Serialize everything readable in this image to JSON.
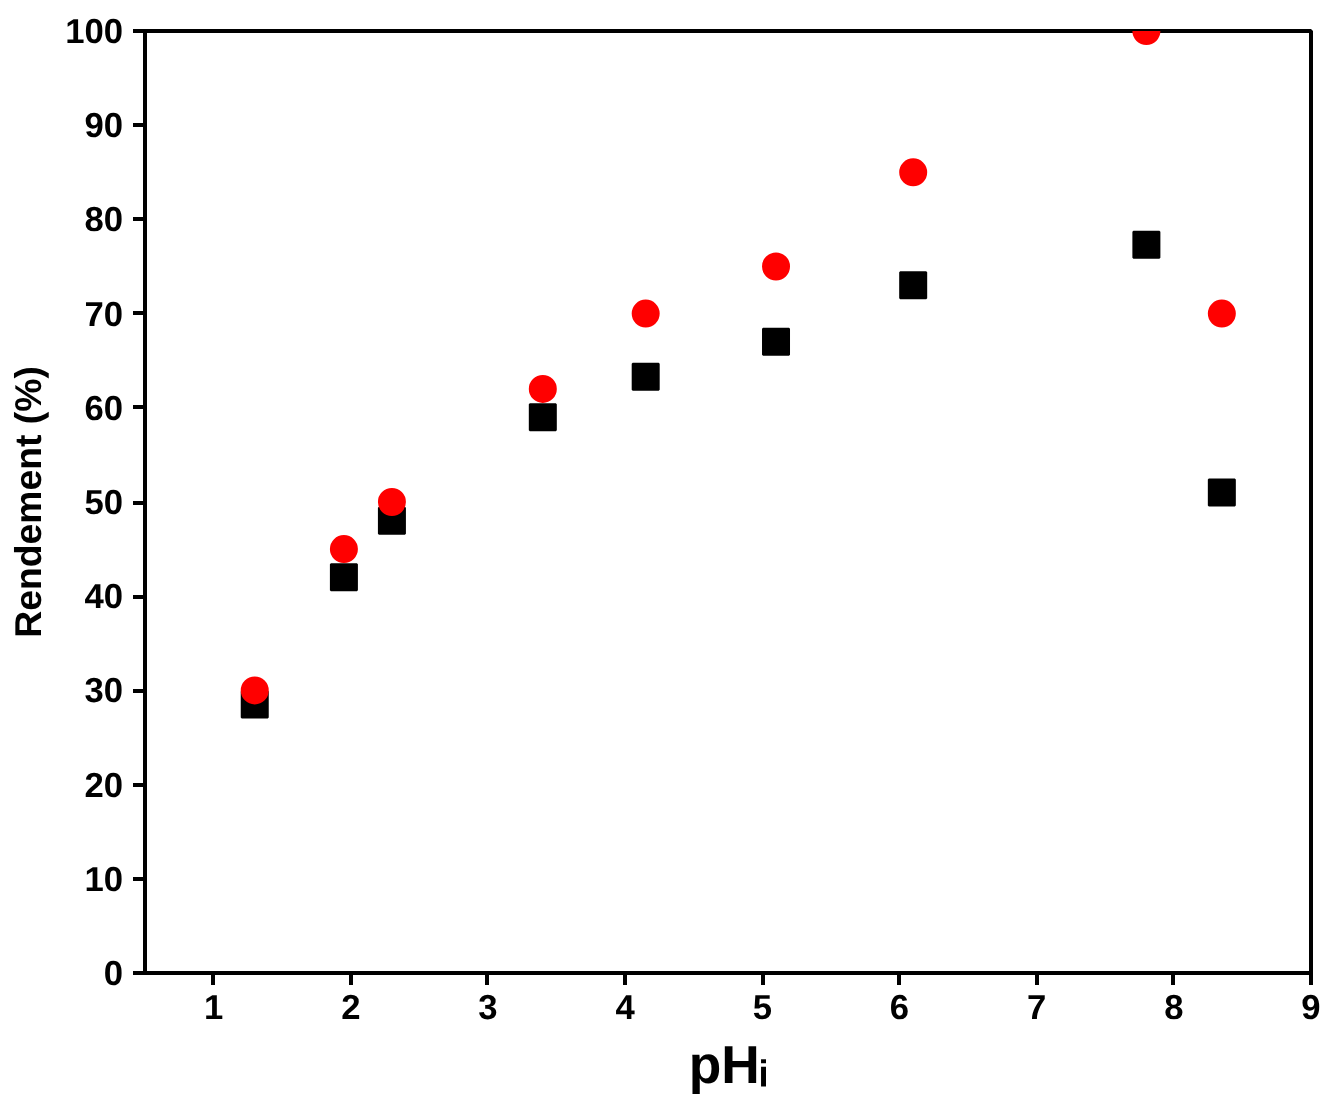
{
  "chart_data": {
    "type": "scatter",
    "xlabel": "pHᵢ",
    "ylabel": "Rendement (%)",
    "x": [
      1.3,
      1.95,
      2.3,
      3.4,
      4.15,
      5.1,
      6.1,
      7.8,
      8.35
    ],
    "series": [
      {
        "color": "#000000",
        "marker": "square",
        "values": [
          28.5,
          42,
          48,
          59,
          63.3,
          67,
          73,
          77.3,
          51
        ]
      },
      {
        "color": "#ff0000",
        "marker": "circle",
        "values": [
          30,
          45,
          50,
          62,
          70,
          75,
          85,
          100,
          70
        ]
      }
    ],
    "xlim": [
      0.5,
      9
    ],
    "ylim": [
      0,
      100
    ],
    "xticks": [
      1,
      2,
      3,
      4,
      5,
      6,
      7,
      8,
      9
    ],
    "yticks": [
      0,
      10,
      20,
      30,
      40,
      50,
      60,
      70,
      80,
      90,
      100
    ],
    "grid": false
  }
}
